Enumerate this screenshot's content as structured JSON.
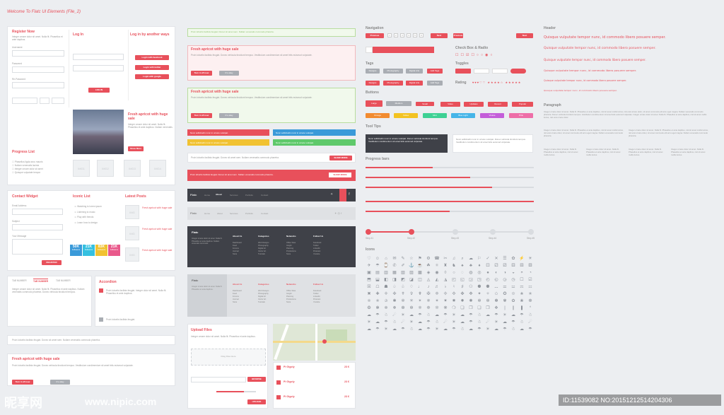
{
  "title": "Welcome To Flatc UI Elements (File_2)",
  "register": {
    "heading": "Register Now",
    "fields": [
      "Username",
      "Password",
      "Re-Password"
    ],
    "button": "REGISTER"
  },
  "login": {
    "heading": "Log In",
    "button": "LOG IN"
  },
  "social": {
    "heading": "Log in by another ways",
    "buttons": [
      "Login with facebook",
      "Login with twitter",
      "Login with google"
    ]
  },
  "blog": {
    "heading": "Fresh apricot with huge sale",
    "button": "Show More"
  },
  "progress": {
    "heading": "Progress List"
  },
  "contact": {
    "heading": "Contact Widget",
    "fields": [
      "Email Address",
      "Subject",
      "Your Message"
    ],
    "button": "REGISTER"
  },
  "iconic": {
    "heading": "Iconic List"
  },
  "latest": {
    "heading": "Latest Posts"
  },
  "stats": [
    {
      "value": "50K",
      "label": "Followers",
      "color": "#3a9ad9"
    },
    {
      "value": "21K",
      "label": "Followers",
      "color": "#35c0e0"
    },
    {
      "value": "83K",
      "label": "Followers",
      "color": "#f1c232"
    },
    {
      "value": "21K",
      "label": "Followers",
      "color": "#e9598b"
    }
  ],
  "tabs": {
    "items": [
      "TAB NUMBER",
      "TAB NUMBER",
      "TAB NUMBER"
    ]
  },
  "accordion": {
    "heading": "Accordion"
  },
  "upload": {
    "heading": "Upload Files",
    "drop": "Drag Files Here",
    "browse": "BROWSE",
    "upload": "UPLOAD"
  },
  "listings": {
    "title": "Pi Gigoly",
    "price": "23 €"
  },
  "buttons_small": {
    "turn_on": "Turn it off now",
    "ok": "It's okay",
    "show_more": "SHOW MORE"
  },
  "navbar": {
    "brand": "Flatc",
    "items": [
      "Home",
      "About",
      "Services",
      "Portfolio",
      "Contact"
    ]
  },
  "footer": {
    "brand": "Flatc",
    "cols": [
      "About Us",
      "Categories",
      "Networks",
      "Follow Us"
    ]
  },
  "sections": {
    "navigation": "Navigation",
    "checkbox": "Check Box & Radio",
    "tags": "Tags",
    "toggles": "Toggles",
    "rating": "Rating",
    "buttons": "Buttons",
    "tooltips": "Tool Tips",
    "progress": "Progress bars",
    "icons": "Icons",
    "header": "Header",
    "paragraph": "Paragraph"
  },
  "pagination": {
    "prev": "Previous",
    "next": "Next",
    "pages": [
      "1",
      "2",
      "3",
      "4",
      "5",
      "6",
      "7"
    ]
  },
  "tag_labels": [
    "Designs",
    "Photography",
    "Digital Arts",
    "Add Tags"
  ],
  "button_labels": [
    {
      "text": "Large",
      "color": "#e8505b"
    },
    {
      "text": "Medium",
      "color": "#a9adb3"
    },
    {
      "text": "Small",
      "color": "#e8505b"
    },
    {
      "text": "Video",
      "color": "#e8505b"
    },
    {
      "text": "Updates",
      "color": "#e8505b"
    },
    {
      "text": "Recent",
      "color": "#e8505b"
    },
    {
      "text": "Popular",
      "color": "#e8505b"
    },
    {
      "text": "Orange",
      "color": "#f28b30"
    },
    {
      "text": "Yellow",
      "color": "#f3c322"
    },
    {
      "text": "Mint",
      "color": "#3ed194"
    },
    {
      "text": "Blue Light",
      "color": "#46b5e8"
    },
    {
      "text": "Violete",
      "color": "#c45ed9"
    },
    {
      "text": "Pink",
      "color": "#ee6ea8"
    }
  ],
  "steps": [
    "Step #1",
    "Step #2",
    "Step #3",
    "Step #4",
    "Step #5"
  ],
  "tooltip": "Nunc sollicitudin nunc in ornare volutpat. Donec vehicula tincidunt tempus. Vestibulum condimentum sit amet felis euismod vulputate.",
  "header_lines": [
    "Quisque vulputate tempor nunc, id commodo libero posuere semper.",
    "Quisque vulputate tempor nunc, id commodo libero posuere semper.",
    "Quisque vulputate tempor nunc, id commodo libero posuere semper.",
    "Quisque vulputate tempor nunc, id commodo libero posuere semper.",
    "Quisque vulputate tempor nunc, id commodo libero posuere semper.",
    "Quisque vulputate tempor nunc, id commodo libero posuere semper."
  ],
  "alerts": {
    "info": "Proin lobortis facilisis feugiat. Donec sit amet sem. Nullam venenatis commodo pharetra.",
    "notice": "Nunc sollicitudin nunc in ornare volutpat."
  },
  "watermark": {
    "logo": "昵享网",
    "url": "www.nipic.com",
    "id": "ID:11539082 NO:20151212514204306"
  }
}
